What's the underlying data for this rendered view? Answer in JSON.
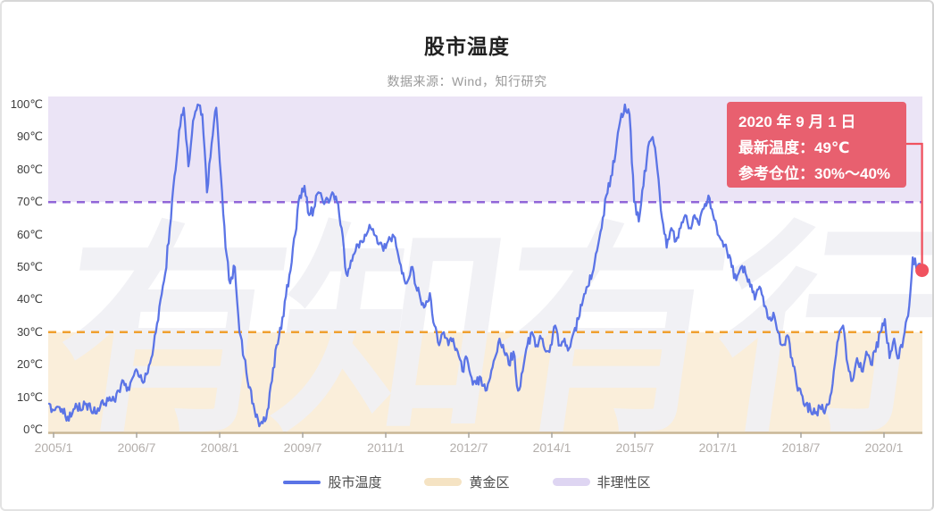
{
  "title": "股市温度",
  "subtitle": "数据来源：Wind，知行研究",
  "watermark": "有知有行",
  "colors": {
    "line": "#5b74e6",
    "golden_zone": "#faeeda",
    "golden_boundary": "#f0a02f",
    "irrational_zone": "#ebe4f6",
    "irrational_boundary": "#9166d8",
    "tooltip_bg": "#e8606f",
    "marker": "#f0525f",
    "axis_line": "#c9b693",
    "tick": "#a9a49c",
    "watermark": "#f0eff4"
  },
  "tooltip": {
    "date": "2020 年 9 月 1 日",
    "temperature": "最新温度：49℃",
    "position": "参考仓位：30%～40%"
  },
  "y_axis": {
    "labels": [
      "0℃",
      "10℃",
      "20℃",
      "30℃",
      "40℃",
      "50℃",
      "60℃",
      "70℃",
      "80℃",
      "90℃",
      "100℃"
    ]
  },
  "x_axis": {
    "labels": [
      "2005/1",
      "2006/7",
      "2008/1",
      "2009/7",
      "2011/1",
      "2012/7",
      "2014/1",
      "2015/7",
      "2017/1",
      "2018/7",
      "2020/1"
    ]
  },
  "legend": {
    "items": [
      {
        "id": "market-temperature",
        "label": "股市温度",
        "shape": "line",
        "swatch": "#5b74e6"
      },
      {
        "id": "golden-zone",
        "label": "黄金区",
        "shape": "band",
        "swatch": "#f5e3c3"
      },
      {
        "id": "irrational-zone",
        "label": "非理性区",
        "shape": "band",
        "swatch": "#ded5f2"
      }
    ]
  },
  "chart_data": {
    "type": "line",
    "title": "股市温度",
    "x_start": "2005/1",
    "x_end": "2020/9",
    "frequency": "monthly",
    "y_unit": "℃",
    "ylim": [
      0,
      103
    ],
    "grid": false,
    "legend_position": "bottom",
    "x_tick_labels": [
      "2005/1",
      "2006/7",
      "2008/1",
      "2009/7",
      "2011/1",
      "2012/7",
      "2014/1",
      "2015/7",
      "2017/1",
      "2018/7",
      "2020/1"
    ],
    "y_tick_labels": [
      "0℃",
      "10℃",
      "20℃",
      "30℃",
      "40℃",
      "50℃",
      "60℃",
      "70℃",
      "80℃",
      "90℃",
      "100℃"
    ],
    "zones": [
      {
        "name": "黄金区",
        "range": [
          0,
          30
        ],
        "fill": "#faeeda",
        "boundary": "#f0a02f",
        "boundary_style": "dashed"
      },
      {
        "name": "非理性区",
        "range": [
          70,
          103
        ],
        "fill": "#ebe4f6",
        "boundary": "#9166d8",
        "boundary_style": "dashed"
      }
    ],
    "series": [
      {
        "name": "股市温度",
        "color": "#5b74e6",
        "values": [
          8,
          6,
          7,
          5,
          4,
          5,
          7,
          6,
          8,
          6,
          5,
          7,
          8,
          10,
          9,
          12,
          15,
          13,
          16,
          18,
          15,
          17,
          22,
          30,
          40,
          48,
          62,
          78,
          92,
          99,
          81,
          95,
          100,
          97,
          73,
          88,
          99,
          78,
          56,
          45,
          50,
          30,
          22,
          13,
          8,
          3,
          2,
          6,
          15,
          26,
          31,
          41,
          49,
          60,
          72,
          75,
          66,
          68,
          73,
          70,
          71,
          73,
          70,
          62,
          48,
          52,
          55,
          58,
          60,
          63,
          60,
          57,
          55,
          58,
          60,
          55,
          48,
          45,
          50,
          44,
          40,
          38,
          42,
          32,
          26,
          30,
          26,
          28,
          24,
          18,
          22,
          16,
          14,
          16,
          12,
          16,
          22,
          28,
          24,
          20,
          24,
          12,
          18,
          26,
          30,
          26,
          28,
          24,
          26,
          32,
          26,
          28,
          25,
          30,
          34,
          40,
          44,
          48,
          55,
          62,
          72,
          78,
          85,
          95,
          100,
          97,
          70,
          64,
          75,
          87,
          90,
          80,
          65,
          56,
          62,
          58,
          62,
          66,
          62,
          66,
          63,
          68,
          72,
          66,
          60,
          58,
          55,
          50,
          46,
          50,
          48,
          44,
          40,
          44,
          38,
          34,
          36,
          30,
          26,
          29,
          22,
          14,
          11,
          8,
          6,
          5,
          7,
          5,
          8,
          18,
          28,
          32,
          20,
          15,
          22,
          18,
          24,
          20,
          24,
          30,
          34,
          22,
          28,
          22,
          28,
          35,
          53,
          50,
          49
        ]
      }
    ],
    "last_point": {
      "date": "2020/9/1",
      "value": 49
    }
  }
}
